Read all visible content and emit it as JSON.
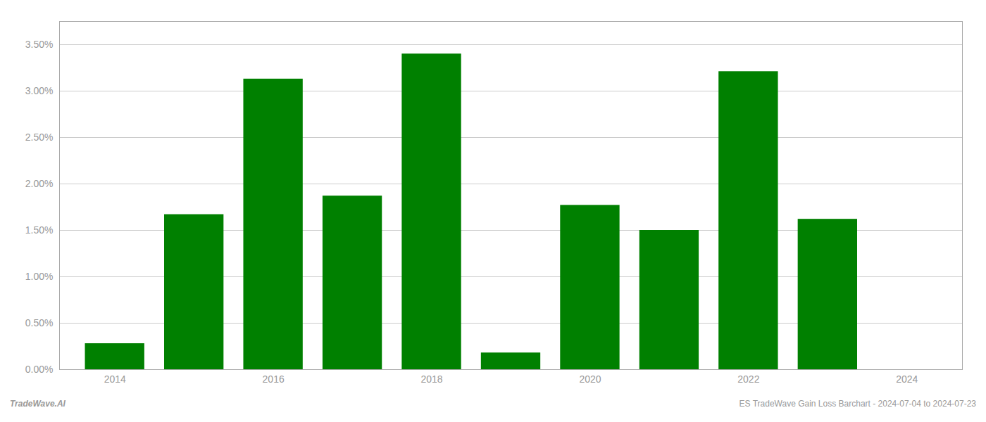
{
  "chart_data": {
    "type": "bar",
    "x": [
      2014,
      2015,
      2016,
      2017,
      2018,
      2019,
      2020,
      2021,
      2022,
      2023
    ],
    "values": [
      0.0028,
      0.0167,
      0.0313,
      0.0187,
      0.034,
      0.0018,
      0.0177,
      0.015,
      0.0321,
      0.0162
    ],
    "color": "#008000",
    "xlim": [
      2013.3,
      2024.7
    ],
    "xticks": [
      2014,
      2016,
      2018,
      2020,
      2022,
      2024
    ],
    "ylim": [
      0,
      0.0375
    ],
    "yticks": [
      {
        "value": 0.0,
        "label": "0.00%"
      },
      {
        "value": 0.005,
        "label": "0.50%"
      },
      {
        "value": 0.01,
        "label": "1.00%"
      },
      {
        "value": 0.015,
        "label": "1.50%"
      },
      {
        "value": 0.02,
        "label": "2.00%"
      },
      {
        "value": 0.025,
        "label": "2.50%"
      },
      {
        "value": 0.03,
        "label": "3.00%"
      },
      {
        "value": 0.035,
        "label": "3.50%"
      }
    ],
    "grid": true,
    "annotations": [
      "TradeWave.AI",
      "ES TradeWave Gain Loss Barchart - 2024-07-04 to 2024-07-23"
    ]
  }
}
